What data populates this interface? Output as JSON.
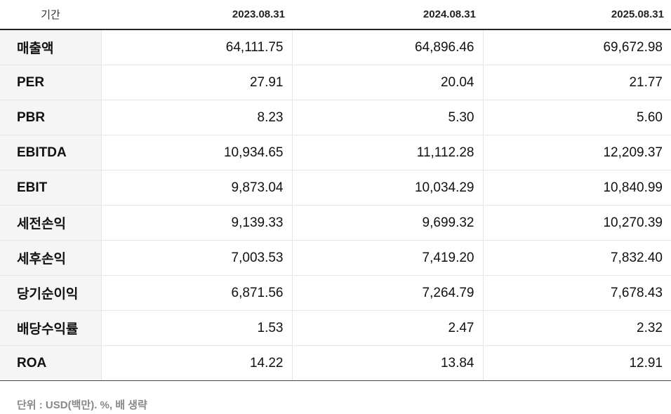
{
  "header": {
    "period_label": "기간",
    "periods": [
      "2023.08.31",
      "2024.08.31",
      "2025.08.31"
    ]
  },
  "rows": [
    {
      "label": "매출액",
      "values": [
        "64,111.75",
        "64,896.46",
        "69,672.98"
      ]
    },
    {
      "label": "PER",
      "values": [
        "27.91",
        "20.04",
        "21.77"
      ]
    },
    {
      "label": "PBR",
      "values": [
        "8.23",
        "5.30",
        "5.60"
      ]
    },
    {
      "label": "EBITDA",
      "values": [
        "10,934.65",
        "11,112.28",
        "12,209.37"
      ]
    },
    {
      "label": "EBIT",
      "values": [
        "9,873.04",
        "10,034.29",
        "10,840.99"
      ]
    },
    {
      "label": "세전손익",
      "values": [
        "9,139.33",
        "9,699.32",
        "10,270.39"
      ]
    },
    {
      "label": "세후손익",
      "values": [
        "7,003.53",
        "7,419.20",
        "7,832.40"
      ]
    },
    {
      "label": "당기순이익",
      "values": [
        "6,871.56",
        "7,264.79",
        "7,678.43"
      ]
    },
    {
      "label": "배당수익률",
      "values": [
        "1.53",
        "2.47",
        "2.32"
      ]
    },
    {
      "label": "ROA",
      "values": [
        "14.22",
        "13.84",
        "12.91"
      ]
    }
  ],
  "footnote": "단위 : USD(백만). %, 배 생략"
}
